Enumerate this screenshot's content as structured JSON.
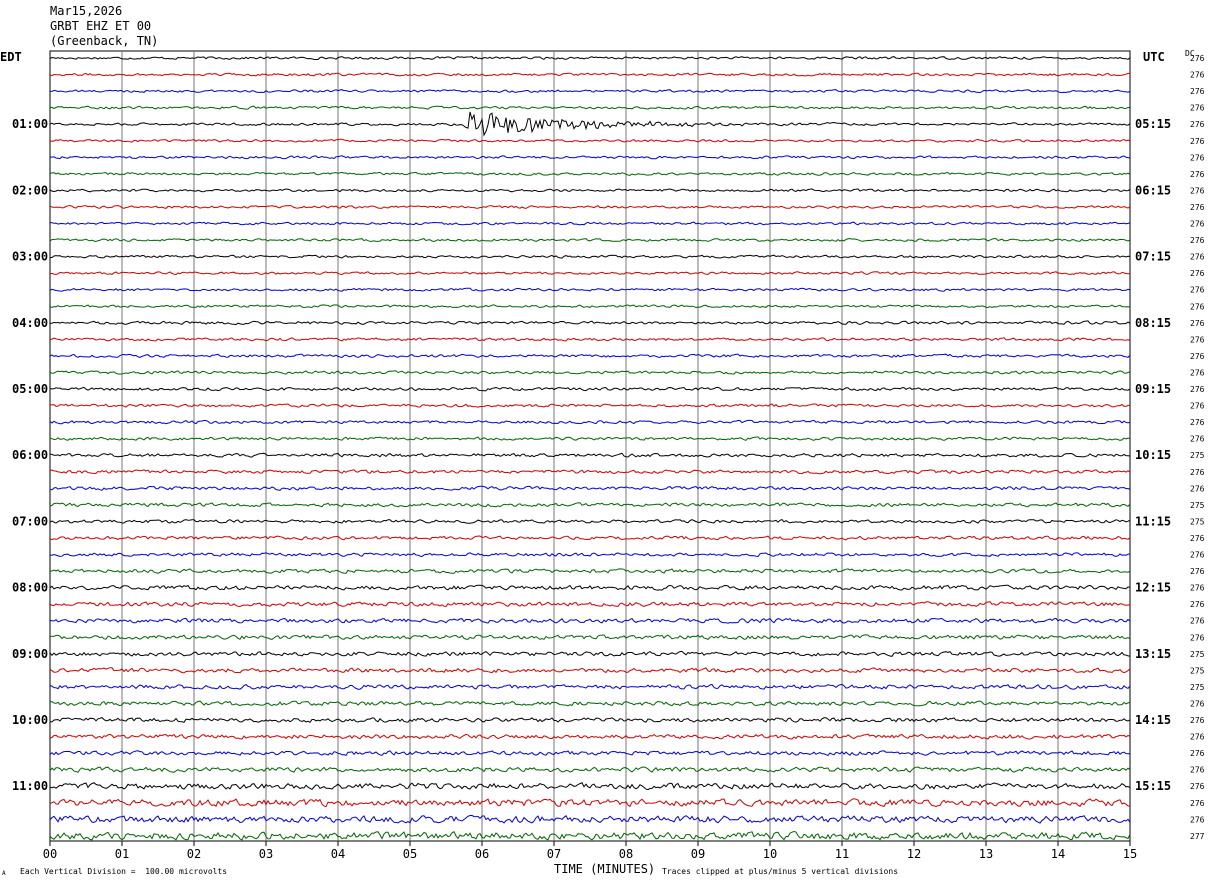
{
  "header": {
    "date": "Mar15,2026",
    "station": "GRBT EHZ ET 00",
    "location": "(Greenback, TN)"
  },
  "left_axis_title": "EDT",
  "right_axis_title": "UTC",
  "dc_title": "DC",
  "footer": {
    "scale_note": "Each Vertical Division =  100.00 microvolts",
    "clip_note": "Traces clipped at plus/minus 5 vertical divisions",
    "corner_mark": "A"
  },
  "colors": {
    "trace": [
      "#000000",
      "#cc0000",
      "#0000cc",
      "#006400"
    ],
    "grid": "#777777"
  },
  "chart_data": {
    "type": "line",
    "title": "",
    "xlabel": "TIME (MINUTES)",
    "ylabel": "",
    "xlim": [
      0,
      15
    ],
    "x_ticks": [
      "00",
      "01",
      "02",
      "03",
      "04",
      "05",
      "06",
      "07",
      "08",
      "09",
      "10",
      "11",
      "12",
      "13",
      "14",
      "15"
    ],
    "grid": true,
    "row_count": 48,
    "minutes_per_row": 15,
    "left_hour_labels": [
      "01:00",
      "02:00",
      "03:00",
      "04:00",
      "05:00",
      "06:00",
      "07:00",
      "08:00",
      "09:00",
      "10:00",
      "11:00"
    ],
    "right_hour_labels": [
      "05:15",
      "06:15",
      "07:15",
      "08:15",
      "09:15",
      "10:15",
      "11:15",
      "12:15",
      "13:15",
      "14:15",
      "15:15"
    ],
    "first_labeled_row": 4,
    "rows_per_hour": 4,
    "dc_offsets": [
      "276",
      "276",
      "276",
      "276",
      "276",
      "276",
      "276",
      "276",
      "276",
      "276",
      "276",
      "276",
      "276",
      "276",
      "276",
      "276",
      "276",
      "276",
      "276",
      "276",
      "276",
      "276",
      "276",
      "276",
      "275",
      "276",
      "276",
      "275",
      "275",
      "276",
      "276",
      "276",
      "276",
      "276",
      "276",
      "276",
      "275",
      "275",
      "275",
      "276",
      "276",
      "276",
      "276",
      "276",
      "276",
      "276",
      "276",
      "277"
    ],
    "events": [
      {
        "row": 4,
        "onset_minute": 5.75,
        "amplitude_divisions": 5,
        "coda_minutes": 5.5,
        "clipped": true
      },
      {
        "row": 1,
        "onset_minute": 2.55,
        "amplitude_divisions": 1,
        "coda_minutes": 0.05,
        "clipped": false
      }
    ],
    "noise_level_by_row": [
      0.6,
      0.6,
      0.6,
      0.6,
      0.6,
      0.6,
      0.6,
      0.6,
      0.6,
      0.6,
      0.6,
      0.6,
      0.6,
      0.6,
      0.6,
      0.6,
      0.7,
      0.7,
      0.7,
      0.7,
      0.7,
      0.7,
      0.7,
      0.7,
      0.8,
      0.8,
      0.8,
      0.8,
      0.8,
      0.8,
      0.8,
      0.9,
      1.0,
      1.0,
      1.0,
      1.0,
      1.0,
      1.0,
      1.0,
      1.0,
      1.0,
      1.0,
      1.0,
      1.1,
      1.4,
      1.6,
      1.6,
      1.7
    ]
  }
}
